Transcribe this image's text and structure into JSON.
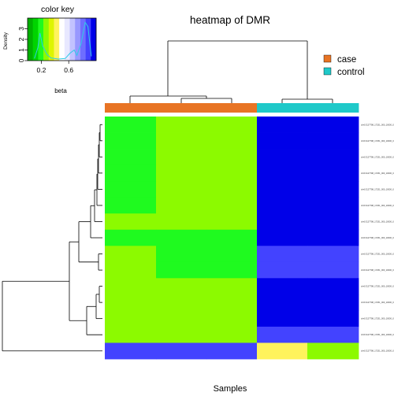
{
  "chart_data": {
    "type": "heatmap",
    "title": "heatmap of DMR",
    "xlabel": "Samples",
    "groups": [
      {
        "name": "case",
        "color": "#E87424"
      },
      {
        "name": "control",
        "color": "#1FC9C9"
      }
    ],
    "column_groups": [
      "case",
      "case",
      "case",
      "control",
      "control"
    ],
    "row_labels": [
      "chr6:3127798_17251_000_10000_0000",
      "chr6:3127798_17251_000_10000_0000",
      "chr6:3127798_17251_000_10000_0000",
      "chr6:3127798_17251_000_10000_0000",
      "chr6:3127798_17251_000_10000_0000",
      "chr6:3127798_17251_000_10000_0000",
      "chr6:3127798_17251_000_10000_0000",
      "chr6:3127798_17251_000_10000_0000",
      "chr6:3127798_17251_000_10000_0000",
      "chr6:3127798_17251_000_10000_0000",
      "chr6:3127798_17251_000_10000_0000",
      "chr6:3127798_17251_000_10000_0000",
      "chr6:3127798_17251_000_10000_0000",
      "chr6:3127798_17251_000_10000_0000",
      "chr6:3127798_17251_000_10000_0000"
    ],
    "values": [
      [
        0.2,
        0.25,
        0.25,
        0.95,
        0.95
      ],
      [
        0.2,
        0.25,
        0.25,
        0.95,
        0.95
      ],
      [
        0.2,
        0.25,
        0.25,
        0.95,
        0.95
      ],
      [
        0.2,
        0.25,
        0.25,
        0.95,
        0.95
      ],
      [
        0.2,
        0.25,
        0.25,
        0.95,
        0.95
      ],
      [
        0.2,
        0.25,
        0.25,
        0.95,
        0.95
      ],
      [
        0.25,
        0.25,
        0.25,
        0.95,
        0.95
      ],
      [
        0.2,
        0.2,
        0.2,
        0.95,
        0.95
      ],
      [
        0.25,
        0.2,
        0.2,
        0.85,
        0.85
      ],
      [
        0.25,
        0.2,
        0.2,
        0.85,
        0.85
      ],
      [
        0.3,
        0.3,
        0.3,
        0.95,
        0.95
      ],
      [
        0.3,
        0.3,
        0.3,
        0.95,
        0.95
      ],
      [
        0.3,
        0.3,
        0.3,
        0.95,
        0.95
      ],
      [
        0.25,
        0.3,
        0.3,
        0.9,
        0.85
      ],
      [
        0.85,
        0.85,
        0.85,
        0.4,
        0.3
      ]
    ],
    "color_key": {
      "title": "color key",
      "xlabel": "beta",
      "ylabel": "Density",
      "x_ticks": [
        "0.2",
        "0.6"
      ],
      "y_ticks": [
        "0",
        "1",
        "2",
        "3"
      ],
      "colors": [
        "#00B000",
        "#00D400",
        "#1FFA1F",
        "#8CFA00",
        "#DDF500",
        "#FFF35C",
        "#FFFFFF",
        "#E8E8FF",
        "#C2C2FF",
        "#9898FF",
        "#6E6EFF",
        "#4343FF",
        "#0000E8"
      ],
      "density": [
        [
          0.1,
          0.2
        ],
        [
          0.15,
          1.2
        ],
        [
          0.18,
          2.6
        ],
        [
          0.22,
          1.4
        ],
        [
          0.28,
          0.6
        ],
        [
          0.34,
          0.25
        ],
        [
          0.45,
          0.15
        ],
        [
          0.55,
          0.2
        ],
        [
          0.62,
          0.7
        ],
        [
          0.68,
          1.0
        ],
        [
          0.72,
          0.5
        ],
        [
          0.78,
          1.6
        ],
        [
          0.84,
          3.6
        ],
        [
          0.88,
          3.2
        ],
        [
          0.93,
          0.4
        ]
      ]
    }
  }
}
